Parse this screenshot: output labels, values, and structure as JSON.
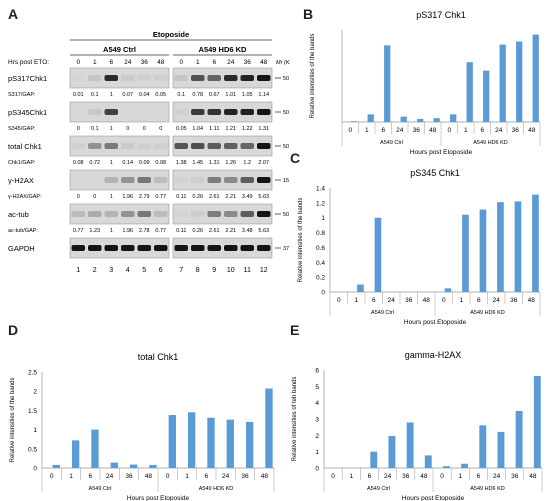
{
  "panels": {
    "A": "A",
    "B": "B",
    "C": "C",
    "D": "D",
    "E": "E"
  },
  "blot": {
    "treatment_header": "Etoposide",
    "time_row_label": "Hrs post ETO:",
    "group1": "A549 Ctrl",
    "group2": "A549 HD6 KD",
    "mr_label": "Mr (Kd)",
    "times": [
      "0",
      "1",
      "6",
      "24",
      "36",
      "48",
      "0",
      "1",
      "6",
      "24",
      "36",
      "48"
    ],
    "lanes": [
      "1",
      "2",
      "3",
      "4",
      "5",
      "6",
      "7",
      "8",
      "9",
      "10",
      "11",
      "12"
    ],
    "rows": [
      {
        "label": "pS317Chk1",
        "mw": "50",
        "ratio_label": "S317/GAP:",
        "ratios": [
          "0.01",
          "0.1",
          "1",
          "0.07",
          "0.04",
          "0.05",
          "0.1",
          "0.78",
          "0.67",
          "1.01",
          "1.05",
          "1.14"
        ],
        "intensity": [
          0.01,
          0.1,
          1,
          0.07,
          0.04,
          0.05,
          0.1,
          0.78,
          0.67,
          1.01,
          1.05,
          1.14
        ]
      },
      {
        "label": "pS345Chk1",
        "mw": "50",
        "ratio_label": "S345/GAP:",
        "ratios": [
          "0",
          "0.1",
          "1",
          "0",
          "0",
          "0",
          "0.05",
          "1.04",
          "1.11",
          "1.21",
          "1.22",
          "1.31"
        ],
        "intensity": [
          0,
          0.1,
          1,
          0,
          0,
          0,
          0.05,
          1.04,
          1.11,
          1.21,
          1.22,
          1.31
        ]
      },
      {
        "label": "total Chk1",
        "mw": "50",
        "ratio_label": "Chk1/GAP:",
        "ratios": [
          "0.08",
          "0.72",
          "1",
          "0.14",
          "0.09",
          "0.08",
          "1.38",
          "1.45",
          "1.31",
          "1.26",
          "1.2",
          "2.07"
        ],
        "intensity": [
          0.08,
          0.72,
          1,
          0.14,
          0.09,
          0.08,
          1.38,
          1.45,
          1.31,
          1.26,
          1.2,
          2.07
        ]
      },
      {
        "label": "γ-H2AX",
        "mw": "15",
        "ratio_label": "γ-H2AX/GAP:",
        "ratios": [
          "0",
          "0",
          "1",
          "1.96",
          "2.79",
          "0.77",
          "0.11",
          "0.26",
          "2.61",
          "2.21",
          "3.49",
          "5.63"
        ],
        "intensity": [
          0,
          0,
          1,
          1.96,
          2.79,
          0.77,
          0.11,
          0.26,
          2.61,
          2.21,
          3.49,
          5.63
        ]
      },
      {
        "label": "ac-tub",
        "mw": "50",
        "ratio_label": "ac-tub/GAP:",
        "ratios": [
          "0.77",
          "1.23",
          "1",
          "1.96",
          "2.78",
          "0.77",
          "0.11",
          "0.26",
          "2.61",
          "2.21",
          "3.48",
          "5.63"
        ],
        "intensity": [
          0.77,
          1.23,
          1,
          1.96,
          2.78,
          0.77,
          0.11,
          0.26,
          2.61,
          2.21,
          3.48,
          5.63
        ]
      },
      {
        "label": "GAPDH",
        "mw": "37",
        "ratio_label": "",
        "ratios": [],
        "intensity": [
          1,
          1,
          1,
          1,
          1,
          1,
          1,
          1,
          1,
          1,
          1,
          1
        ]
      }
    ]
  },
  "chart_data": [
    {
      "panel": "B",
      "type": "bar",
      "title": "pS317 Chk1",
      "ylabel": "Relative intensities of the bands",
      "xlabel": "Hours post Etoposide",
      "ylim": [
        0,
        1.2
      ],
      "yticks": [],
      "categories": [
        "0",
        "1",
        "6",
        "24",
        "36",
        "48",
        "0",
        "1",
        "6",
        "24",
        "36",
        "48"
      ],
      "groups": [
        "A549 Ctrl",
        "A549 HD6 KD"
      ],
      "values": [
        0.01,
        0.1,
        1,
        0.07,
        0.04,
        0.05,
        0.1,
        0.78,
        0.67,
        1.01,
        1.05,
        1.14
      ],
      "bar_color": "#5b9bd5"
    },
    {
      "panel": "C",
      "type": "bar",
      "title": "pS345 Chk1",
      "ylabel": "Relative intensities of the bands",
      "xlabel": "Hours post Etoposide",
      "ylim": [
        0,
        1.4
      ],
      "yticks": [
        "0",
        "0.2",
        "0.4",
        "0.6",
        "0.8",
        "1",
        "1.2",
        "1.4"
      ],
      "categories": [
        "0",
        "1",
        "6",
        "24",
        "36",
        "48",
        "0",
        "1",
        "6",
        "24",
        "36",
        "48"
      ],
      "groups": [
        "A549 Ctrl",
        "A549 HD6 KD"
      ],
      "values": [
        0,
        0.1,
        1,
        0,
        0,
        0,
        0.05,
        1.04,
        1.11,
        1.21,
        1.22,
        1.31
      ],
      "bar_color": "#5b9bd5"
    },
    {
      "panel": "D",
      "type": "bar",
      "title": "total Chk1",
      "ylabel": "Relative intensities of the bands",
      "xlabel": "Hours post Etoposide",
      "ylim": [
        0,
        2.5
      ],
      "yticks": [
        "0",
        "0.5",
        "1",
        "1.5",
        "2",
        "2.5"
      ],
      "categories": [
        "0",
        "1",
        "6",
        "24",
        "36",
        "48",
        "0",
        "1",
        "6",
        "24",
        "36",
        "48"
      ],
      "groups": [
        "A549 Ctrl",
        "A549 HD6 KD"
      ],
      "values": [
        0.08,
        0.72,
        1,
        0.14,
        0.09,
        0.08,
        1.38,
        1.45,
        1.31,
        1.26,
        1.2,
        2.07
      ],
      "bar_color": "#5b9bd5"
    },
    {
      "panel": "E",
      "type": "bar",
      "title": "gamma-H2AX",
      "ylabel": "Relative intensities of teh bands",
      "xlabel": "Hours post Etoposide",
      "ylim": [
        0,
        6
      ],
      "yticks": [
        "0",
        "1",
        "2",
        "3",
        "4",
        "5",
        "6"
      ],
      "categories": [
        "0",
        "1",
        "6",
        "24",
        "36",
        "48",
        "0",
        "1",
        "6",
        "24",
        "36",
        "48"
      ],
      "groups": [
        "A549 Ctrl",
        "A549 HD6 KD"
      ],
      "values": [
        0,
        0,
        1,
        1.96,
        2.79,
        0.77,
        0.11,
        0.26,
        2.61,
        2.21,
        3.49,
        5.63
      ],
      "bar_color": "#5b9bd5"
    }
  ]
}
